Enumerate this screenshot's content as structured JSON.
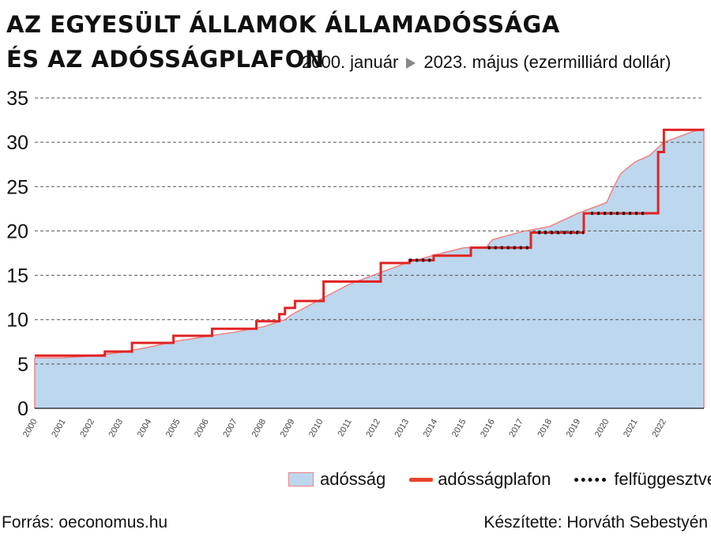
{
  "header": {
    "title_line1": "AZ EGYESÜLT ÁLLAMOK ÁLLAMADÓSSÁGA",
    "title_line2": "ÉS AZ ADÓSSÁGPLAFON",
    "subtitle_start": "2000. január",
    "subtitle_end": "2023. május (ezermilliárd dollár)"
  },
  "legend": {
    "debt_label": "adósság",
    "ceiling_label": "adósságplafon",
    "suspended_label": "felfüggesztve"
  },
  "footer": {
    "source": "Forrás: oeconomus.hu",
    "author": "Készítette: Horváth Sebestyén"
  },
  "colors": {
    "debt_fill": "#bdd7ee",
    "debt_line": "#f08080",
    "ceiling": "#e02424",
    "suspended": "#111111",
    "grid": "#555555"
  },
  "chart_data": {
    "type": "area",
    "title": "AZ EGYESÜLT ÁLLAMOK ÁLLAMADÓSSÁGA ÉS AZ ADÓSSÁGPLAFON",
    "subtitle": "2000. január – 2023. május (ezermilliárd dollár)",
    "xlim": [
      2000.0,
      2023.4
    ],
    "ylim": [
      0,
      35
    ],
    "y_ticks": [
      0,
      5,
      10,
      15,
      20,
      25,
      30,
      35
    ],
    "x_tick_labels": [
      "2000",
      "2001",
      "2002",
      "2003",
      "2004",
      "2005",
      "2006",
      "2007",
      "2008",
      "2009",
      "2010",
      "2011",
      "2012",
      "2013",
      "2014",
      "2015",
      "2016",
      "2017",
      "2018",
      "2019",
      "2020",
      "2021",
      "2022"
    ],
    "grid": true,
    "legend_position": "bottom-right",
    "series": [
      {
        "name": "adósság",
        "kind": "area",
        "x": [
          2000.0,
          2001.0,
          2002.0,
          2003.0,
          2004.0,
          2005.0,
          2006.0,
          2007.0,
          2008.0,
          2008.75,
          2009.0,
          2010.0,
          2011.0,
          2012.0,
          2013.0,
          2014.0,
          2015.0,
          2015.8,
          2016.0,
          2017.0,
          2018.0,
          2019.0,
          2020.0,
          2020.25,
          2020.5,
          2021.0,
          2021.5,
          2022.0,
          2023.0,
          2023.4
        ],
        "y": [
          5.7,
          5.7,
          5.9,
          6.3,
          6.9,
          7.6,
          8.1,
          8.6,
          9.2,
          10.0,
          10.6,
          12.3,
          14.0,
          15.2,
          16.4,
          17.3,
          18.1,
          18.2,
          19.0,
          19.9,
          20.5,
          22.0,
          23.2,
          25.0,
          26.5,
          27.8,
          28.5,
          30.0,
          31.2,
          31.5
        ]
      },
      {
        "name": "adósságplafon",
        "kind": "step",
        "x": [
          2000.0,
          2002.45,
          2003.4,
          2004.85,
          2006.2,
          2007.75,
          2008.55,
          2008.75,
          2009.1,
          2010.1,
          2012.1,
          2013.1,
          2013.95,
          2015.25,
          2015.85,
          2017.35,
          2019.2,
          2021.4,
          2021.8,
          2022.0,
          2023.4
        ],
        "y": [
          5.95,
          6.4,
          7.38,
          8.18,
          8.97,
          9.82,
          10.62,
          11.32,
          12.1,
          14.29,
          16.39,
          16.7,
          17.21,
          18.11,
          18.11,
          19.81,
          21.99,
          22.0,
          28.9,
          31.4,
          31.4
        ]
      },
      {
        "name": "felfüggesztve",
        "kind": "suspended",
        "segments": [
          {
            "x": [
              2013.1,
              2013.95
            ],
            "y": 16.7
          },
          {
            "x": [
              2015.85,
              2017.35
            ],
            "y": 18.11
          },
          {
            "x": [
              2017.6,
              2019.2
            ],
            "y": 19.81
          },
          {
            "x": [
              2019.45,
              2021.4
            ],
            "y": 21.99
          }
        ]
      }
    ]
  }
}
